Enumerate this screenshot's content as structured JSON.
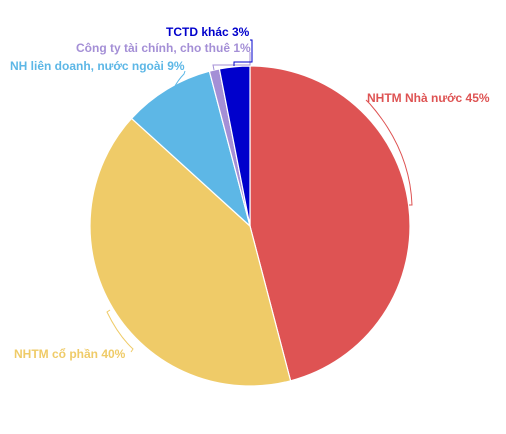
{
  "chart_data": {
    "type": "pie",
    "title": "",
    "start_angle_deg": 0,
    "direction": "clockwise",
    "slices": [
      {
        "name": "NHTM Nhà nước",
        "value": 45,
        "label": "NHTM Nhà nước 45%",
        "color": "#DE5353"
      },
      {
        "name": "NHTM cổ phần",
        "value": 40,
        "label": "NHTM cổ phần 40%",
        "color": "#EFCB68"
      },
      {
        "name": "NH liên doanh, nước ngoài",
        "value": 9,
        "label": "NH liên doanh, nước ngoài 9%",
        "color": "#5DB7E6"
      },
      {
        "name": "Công ty tài chính, cho thuê",
        "value": 1,
        "label": "Công ty tài chính, cho thuê 1%",
        "color": "#A48FD6"
      },
      {
        "name": "TCTD khác",
        "value": 3,
        "label": "TCTD khác 3%",
        "color": "#0000CC"
      }
    ]
  }
}
